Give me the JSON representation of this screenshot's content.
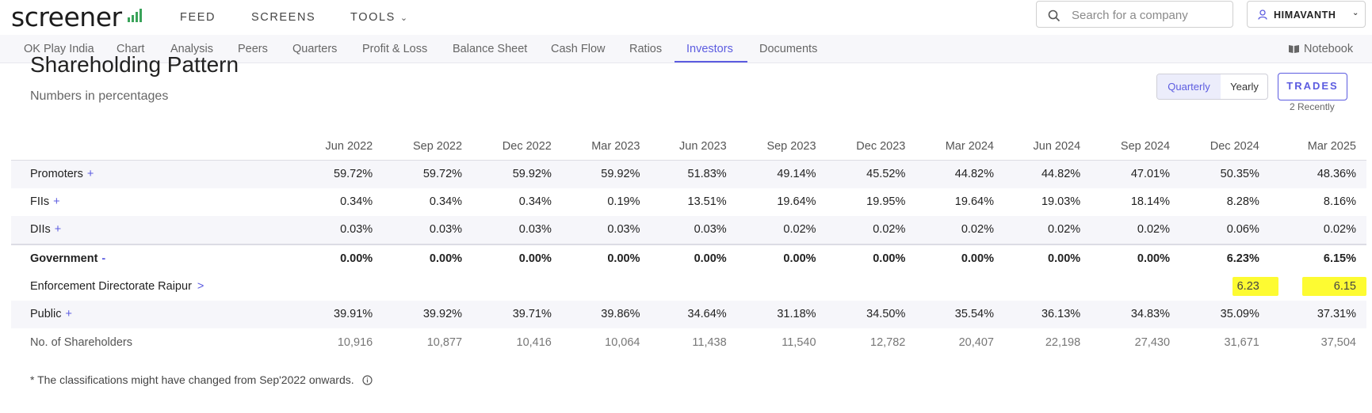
{
  "brand": {
    "logo_text": "screener"
  },
  "nav": {
    "feed": "FEED",
    "screens": "SCREENS",
    "tools": "TOOLS"
  },
  "search": {
    "placeholder": "Search for a company"
  },
  "user": {
    "name": "HIMAVANTH"
  },
  "subnav": {
    "items": [
      "OK Play India",
      "Chart",
      "Analysis",
      "Peers",
      "Quarters",
      "Profit & Loss",
      "Balance Sheet",
      "Cash Flow",
      "Ratios",
      "Investors",
      "Documents"
    ],
    "active": "Investors",
    "notebook": "Notebook"
  },
  "section": {
    "title": "Shareholding Pattern",
    "subtitle": "Numbers in percentages",
    "toggle": {
      "quarterly": "Quarterly",
      "yearly": "Yearly",
      "selected": "Quarterly"
    },
    "trades_label": "TRADES",
    "trades_recent": "2 Recently"
  },
  "table": {
    "headers": [
      "Jun 2022",
      "Sep 2022",
      "Dec 2022",
      "Mar 2023",
      "Jun 2023",
      "Sep 2023",
      "Dec 2023",
      "Mar 2024",
      "Jun 2024",
      "Sep 2024",
      "Dec 2024",
      "Mar 2025"
    ],
    "rows": [
      {
        "label": "Promoters",
        "sign": "+",
        "values": [
          "59.72%",
          "59.72%",
          "59.92%",
          "59.92%",
          "51.83%",
          "49.14%",
          "45.52%",
          "44.82%",
          "44.82%",
          "47.01%",
          "50.35%",
          "48.36%"
        ]
      },
      {
        "label": "FIIs",
        "sign": "+",
        "values": [
          "0.34%",
          "0.34%",
          "0.34%",
          "0.19%",
          "13.51%",
          "19.64%",
          "19.95%",
          "19.64%",
          "19.03%",
          "18.14%",
          "8.28%",
          "8.16%"
        ]
      },
      {
        "label": "DIIs",
        "sign": "+",
        "values": [
          "0.03%",
          "0.03%",
          "0.03%",
          "0.03%",
          "0.03%",
          "0.02%",
          "0.02%",
          "0.02%",
          "0.02%",
          "0.02%",
          "0.06%",
          "0.02%"
        ]
      },
      {
        "label": "Government",
        "sign": "-",
        "values": [
          "0.00%",
          "0.00%",
          "0.00%",
          "0.00%",
          "0.00%",
          "0.00%",
          "0.00%",
          "0.00%",
          "0.00%",
          "0.00%",
          "6.23%",
          "6.15%"
        ]
      },
      {
        "label": "Enforcement Directorate Raipur",
        "sign": ">",
        "values": [
          "",
          "",
          "",
          "",
          "",
          "",
          "",
          "",
          "",
          "",
          "6.23",
          "6.15"
        ]
      },
      {
        "label": "Public",
        "sign": "+",
        "values": [
          "39.91%",
          "39.92%",
          "39.71%",
          "39.86%",
          "34.64%",
          "31.18%",
          "34.50%",
          "35.54%",
          "36.13%",
          "34.83%",
          "35.09%",
          "37.31%"
        ]
      },
      {
        "label": "No. of Shareholders",
        "sign": "",
        "values": [
          "10,916",
          "10,877",
          "10,416",
          "10,064",
          "11,438",
          "11,540",
          "12,782",
          "20,407",
          "22,198",
          "27,430",
          "31,671",
          "37,504"
        ]
      }
    ]
  },
  "footnote": "* The classifications might have changed from Sep'2022 onwards.",
  "colors": {
    "accent": "#5c5ce0",
    "highlight": "#fdfb32",
    "stripe": "#f6f6fa"
  }
}
